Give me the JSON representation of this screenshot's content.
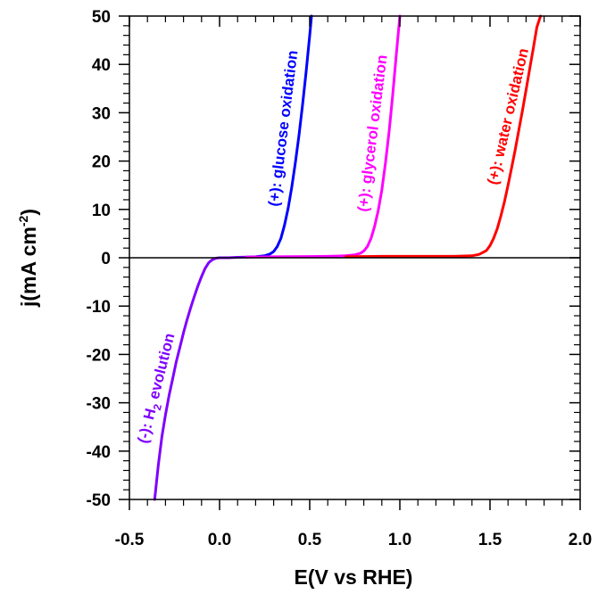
{
  "chart_data": {
    "type": "line",
    "xlabel": "E(V vs RHE)",
    "ylabel": {
      "main": "j(mA cm",
      "sup": "-2",
      "end": ")"
    },
    "xlim": [
      -0.5,
      2.0
    ],
    "ylim": [
      -50,
      50
    ],
    "xticks": [
      "-0.5",
      "0.0",
      "0.5",
      "1.0",
      "1.5",
      "2.0"
    ],
    "yticks": [
      "50",
      "40",
      "30",
      "20",
      "10",
      "0",
      "-10",
      "-20",
      "-30",
      "-40",
      "-50"
    ],
    "grid": false,
    "zero_line": true,
    "series": [
      {
        "color": "#7f00ff",
        "x": [
          -0.36,
          -0.34,
          -0.32,
          -0.3,
          -0.28,
          -0.26,
          -0.24,
          -0.22,
          -0.2,
          -0.18,
          -0.16,
          -0.14,
          -0.12,
          -0.1,
          -0.08,
          -0.06,
          -0.04,
          -0.02,
          0.0,
          0.05,
          0.1,
          0.15
        ],
        "y": [
          -50,
          -43,
          -37,
          -32.5,
          -28.5,
          -25,
          -21.5,
          -18.5,
          -15.5,
          -12.8,
          -10.3,
          -8,
          -5.8,
          -3.9,
          -2.2,
          -1,
          -0.4,
          -0.1,
          0,
          0,
          0.1,
          0.15
        ]
      },
      {
        "color": "#0000ff",
        "x": [
          0.15,
          0.2,
          0.25,
          0.28,
          0.3,
          0.32,
          0.34,
          0.36,
          0.38,
          0.4,
          0.42,
          0.44,
          0.46,
          0.48,
          0.5,
          0.51
        ],
        "y": [
          0.15,
          0.2,
          0.4,
          0.8,
          1.3,
          2.3,
          4.0,
          6.7,
          10.2,
          14.5,
          19.5,
          25.2,
          31.5,
          38.5,
          46.0,
          50
        ]
      },
      {
        "color": "#ff00ff",
        "x": [
          0.15,
          0.3,
          0.5,
          0.6,
          0.7,
          0.75,
          0.78,
          0.8,
          0.82,
          0.84,
          0.86,
          0.88,
          0.9,
          0.92,
          0.94,
          0.96,
          0.98,
          1.0
        ],
        "y": [
          0.15,
          0.2,
          0.25,
          0.3,
          0.4,
          0.6,
          0.9,
          1.4,
          2.3,
          4.0,
          6.5,
          9.8,
          14.0,
          19.5,
          26.0,
          33.5,
          42.0,
          50
        ]
      },
      {
        "color": "#ff0000",
        "x": [
          0.7,
          0.9,
          1.1,
          1.3,
          1.4,
          1.44,
          1.48,
          1.5,
          1.52,
          1.54,
          1.56,
          1.58,
          1.6,
          1.62,
          1.64,
          1.66,
          1.68,
          1.7,
          1.72,
          1.74,
          1.76,
          1.78
        ],
        "y": [
          0.2,
          0.3,
          0.3,
          0.3,
          0.4,
          0.7,
          1.5,
          2.5,
          4.0,
          6.0,
          8.6,
          11.6,
          15.0,
          18.6,
          22.4,
          26.4,
          30.5,
          34.7,
          39.0,
          43.3,
          47.7,
          50
        ]
      }
    ],
    "annotations": [
      {
        "text": "(+): glucose oxidation",
        "color": "#0000ff"
      },
      {
        "text": "(+): glycerol oxidation",
        "color": "#ff00ff"
      },
      {
        "text": "(+): water oxidation",
        "color": "#ff0000"
      },
      {
        "pre": "(-): H",
        "sub": "2",
        "post": " evolution",
        "color": "#7f00ff"
      }
    ]
  }
}
